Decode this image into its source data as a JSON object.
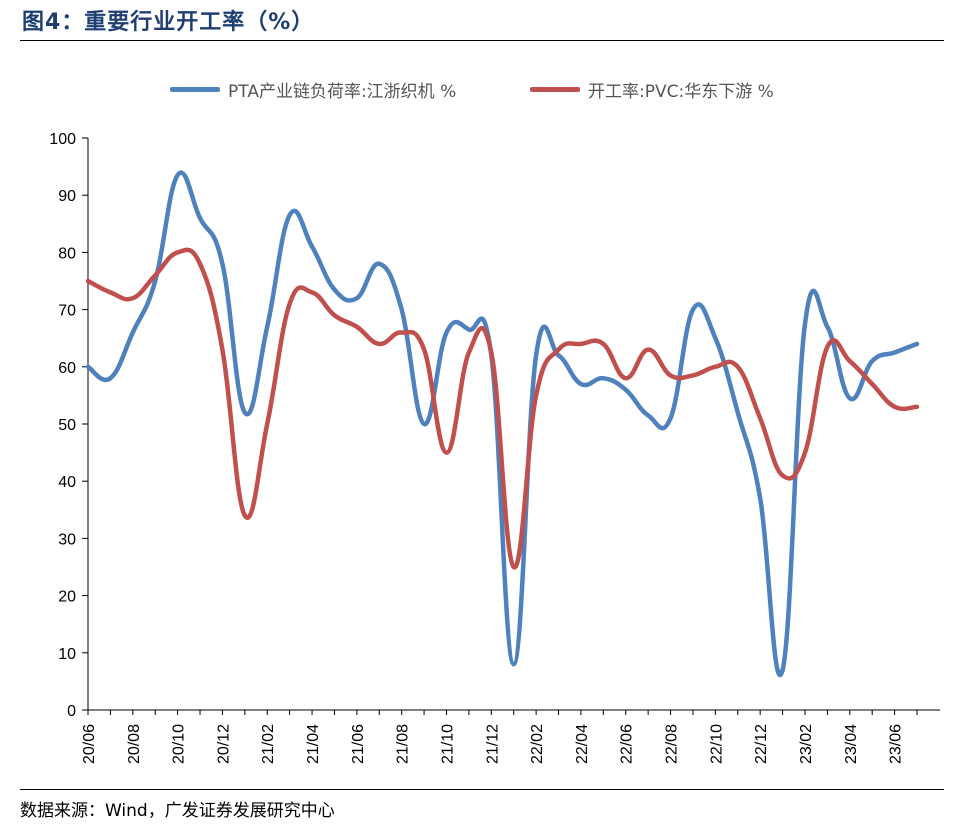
{
  "figure": {
    "title": "图4：重要行业开工率（%）",
    "source": "数据来源：Wind，广发证券发展研究中心"
  },
  "chart_data": {
    "type": "line",
    "title": "",
    "xlabel": "",
    "ylabel": "",
    "ylim": [
      0,
      100
    ],
    "yticks": [
      0,
      10,
      20,
      30,
      40,
      50,
      60,
      70,
      80,
      90,
      100
    ],
    "grid": false,
    "legend_position": "top-center",
    "x_tick_labels": [
      "20/06",
      "20/08",
      "20/10",
      "20/12",
      "21/02",
      "21/04",
      "21/06",
      "21/08",
      "21/10",
      "21/12",
      "22/02",
      "22/04",
      "22/06",
      "22/08",
      "22/10",
      "22/12",
      "23/02",
      "23/04",
      "23/06"
    ],
    "x": [
      "20/06",
      "20/07",
      "20/08",
      "20/09",
      "20/10",
      "20/11",
      "20/12",
      "21/01",
      "21/02",
      "21/03",
      "21/04",
      "21/05",
      "21/06",
      "21/07",
      "21/08",
      "21/09",
      "21/10",
      "21/11",
      "21/12",
      "22/01",
      "22/02",
      "22/03",
      "22/04",
      "22/05",
      "22/06",
      "22/07",
      "22/08",
      "22/09",
      "22/10",
      "22/11",
      "22/12",
      "23/01",
      "23/02",
      "23/03",
      "23/04",
      "23/05",
      "23/06",
      "23/07"
    ],
    "series": [
      {
        "name": "PTA产业链负荷率:江浙织机 %",
        "color": "#4f81bd",
        "values": [
          60,
          58,
          66,
          75,
          93.5,
          86,
          78,
          52,
          67,
          86.5,
          81,
          73.5,
          72,
          78,
          70,
          50,
          66,
          66.5,
          62,
          8,
          62,
          62,
          57,
          58,
          56,
          51.5,
          51,
          70,
          65,
          52,
          37,
          7,
          67.5,
          67,
          54.5,
          61,
          62.5,
          64
        ]
      },
      {
        "name": "开工率:PVC:华东下游 %",
        "color": "#c0504d",
        "values": [
          75,
          73,
          72,
          76,
          80,
          78,
          63,
          34,
          50,
          71,
          73,
          69,
          67,
          64,
          66,
          63,
          45,
          62.5,
          62.5,
          25,
          55,
          63,
          64,
          64,
          58,
          63,
          58.5,
          58.5,
          60,
          60,
          51,
          41,
          45,
          63.5,
          61,
          57,
          53,
          53
        ]
      }
    ]
  }
}
